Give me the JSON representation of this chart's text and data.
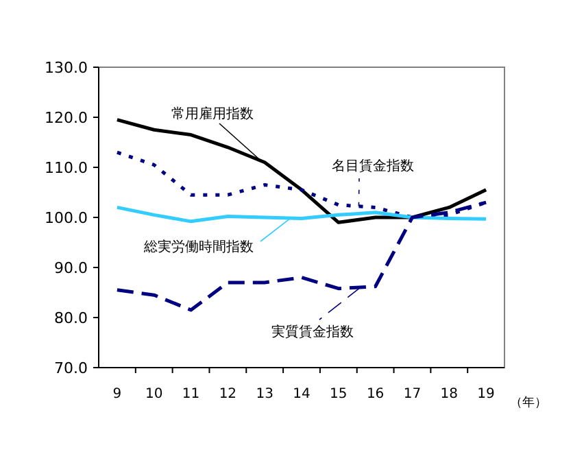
{
  "chart_data": {
    "type": "line",
    "xlabel": "（年）",
    "categories": [
      "9",
      "10",
      "11",
      "12",
      "13",
      "14",
      "15",
      "16",
      "17",
      "18",
      "19"
    ],
    "ylim": [
      70,
      130
    ],
    "yticks": [
      {
        "value": 70,
        "label": "70.0"
      },
      {
        "value": 80,
        "label": "80.0"
      },
      {
        "value": 90,
        "label": "90.0"
      },
      {
        "value": 100,
        "label": "100.0"
      },
      {
        "value": 110,
        "label": "110.0"
      },
      {
        "value": 120,
        "label": "120.0"
      },
      {
        "value": 130,
        "label": "130.0"
      }
    ],
    "grid": false,
    "marker": "none",
    "series": [
      {
        "name": "常用雇用指数",
        "color": "#000000",
        "line_style": "solid",
        "values": [
          119.5,
          117.5,
          116.5,
          114,
          111,
          105.5,
          99,
          100,
          100,
          102,
          105.5
        ]
      },
      {
        "name": "名目賃金指数",
        "color": "#000080",
        "line_style": "dotted",
        "values": [
          113,
          110.5,
          104.5,
          104.5,
          106.5,
          105.5,
          102.5,
          102,
          100,
          100.5,
          103
        ]
      },
      {
        "name": "総実労働時間指数",
        "color": "#33ccff",
        "line_style": "solid",
        "values": [
          102,
          100.5,
          99.2,
          100.2,
          100,
          99.8,
          100.5,
          101,
          100,
          99.8,
          99.7
        ]
      },
      {
        "name": "実質賃金指数",
        "color": "#000080",
        "line_style": "dashed",
        "values": [
          85.5,
          84.5,
          81.5,
          87,
          87,
          88,
          85.8,
          86.2,
          100,
          101,
          103
        ]
      }
    ]
  }
}
